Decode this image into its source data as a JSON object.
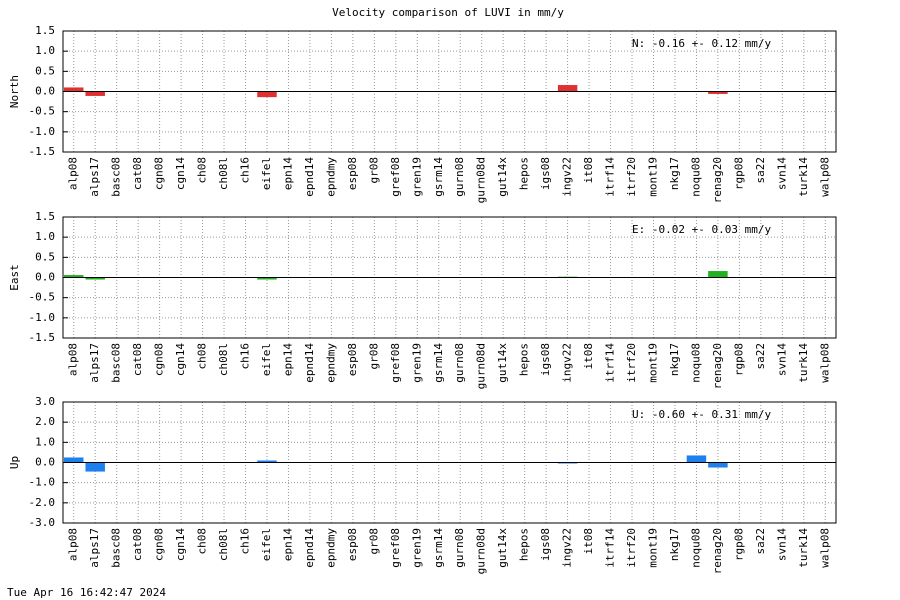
{
  "title": "Velocity comparison of LUVI in mm/y",
  "footer": "Tue Apr 16 16:42:47 2024",
  "chart_data": [
    {
      "type": "bar",
      "ylabel": "North",
      "annotation": "N:  -0.16 +-  0.12 mm/y",
      "color": "#e03030",
      "grid": true,
      "categories": [
        "alp08",
        "alps17",
        "basc08",
        "cat08",
        "cgn08",
        "cgn14",
        "ch08",
        "ch08l",
        "ch16",
        "eifel",
        "epn14",
        "epnd14",
        "epndmy",
        "esp08",
        "gr08",
        "gref08",
        "gren19",
        "gsrm14",
        "gurn08",
        "gurn08d",
        "gut14x",
        "hepos",
        "igs08",
        "ingv22",
        "it08",
        "itrf14",
        "itrf20",
        "mont19",
        "nkg17",
        "noqu08",
        "renag20",
        "rgp08",
        "sa22",
        "svn14",
        "turk14",
        "walp08"
      ],
      "values": [
        0.1,
        -0.11,
        null,
        null,
        null,
        null,
        null,
        null,
        null,
        -0.14,
        null,
        null,
        null,
        null,
        null,
        null,
        null,
        null,
        null,
        null,
        null,
        null,
        null,
        0.16,
        null,
        null,
        null,
        null,
        null,
        null,
        -0.06,
        null,
        null,
        null,
        null,
        null
      ],
      "ylim": [
        -1.5,
        1.5
      ],
      "yticks": [
        {
          "value": -1.5,
          "label": "-1.5"
        },
        {
          "value": -1,
          "label": "-1.0"
        },
        {
          "value": -0.5,
          "label": "-0.5"
        },
        {
          "value": 0,
          "label": "0.0"
        },
        {
          "value": 0.5,
          "label": "0.5"
        },
        {
          "value": 1,
          "label": "1.0"
        },
        {
          "value": 1.5,
          "label": "1.5"
        }
      ]
    },
    {
      "type": "bar",
      "ylabel": "East",
      "annotation": "E:  -0.02 +-  0.03 mm/y",
      "color": "#20b020",
      "grid": true,
      "categories": [
        "alp08",
        "alps17",
        "basc08",
        "cat08",
        "cgn08",
        "cgn14",
        "ch08",
        "ch08l",
        "ch16",
        "eifel",
        "epn14",
        "epnd14",
        "epndmy",
        "esp08",
        "gr08",
        "gref08",
        "gren19",
        "gsrm14",
        "gurn08",
        "gurn08d",
        "gut14x",
        "hepos",
        "igs08",
        "ingv22",
        "it08",
        "itrf14",
        "itrf20",
        "mont19",
        "nkg17",
        "noqu08",
        "renag20",
        "rgp08",
        "sa22",
        "svn14",
        "turk14",
        "walp08"
      ],
      "values": [
        0.06,
        -0.05,
        null,
        null,
        null,
        null,
        null,
        null,
        null,
        -0.05,
        null,
        null,
        null,
        null,
        null,
        null,
        null,
        null,
        null,
        null,
        null,
        null,
        null,
        0.02,
        null,
        null,
        null,
        null,
        null,
        null,
        0.16,
        null,
        null,
        null,
        null,
        null
      ],
      "ylim": [
        -1.5,
        1.5
      ],
      "yticks": [
        {
          "value": -1.5,
          "label": "-1.5"
        },
        {
          "value": -1,
          "label": "-1.0"
        },
        {
          "value": -0.5,
          "label": "-0.5"
        },
        {
          "value": 0,
          "label": "0.0"
        },
        {
          "value": 0.5,
          "label": "0.5"
        },
        {
          "value": 1,
          "label": "1.0"
        },
        {
          "value": 1.5,
          "label": "1.5"
        }
      ]
    },
    {
      "type": "bar",
      "ylabel": "Up",
      "annotation": "U:  -0.60 +-  0.31 mm/y",
      "color": "#1e7fef",
      "grid": true,
      "categories": [
        "alp08",
        "alps17",
        "basc08",
        "cat08",
        "cgn08",
        "cgn14",
        "ch08",
        "ch08l",
        "ch16",
        "eifel",
        "epn14",
        "epnd14",
        "epndmy",
        "esp08",
        "gr08",
        "gref08",
        "gren19",
        "gsrm14",
        "gurn08",
        "gurn08d",
        "gut14x",
        "hepos",
        "igs08",
        "ingv22",
        "it08",
        "itrf14",
        "itrf20",
        "mont19",
        "nkg17",
        "noqu08",
        "renag20",
        "rgp08",
        "sa22",
        "svn14",
        "turk14",
        "walp08"
      ],
      "values": [
        0.25,
        -0.45,
        null,
        null,
        null,
        null,
        null,
        null,
        null,
        0.1,
        null,
        null,
        null,
        null,
        null,
        null,
        null,
        null,
        null,
        null,
        null,
        null,
        null,
        -0.05,
        null,
        null,
        null,
        null,
        null,
        0.35,
        -0.25,
        null,
        null,
        null,
        null,
        null
      ],
      "ylim": [
        -3,
        3
      ],
      "yticks": [
        {
          "value": -3,
          "label": "-3.0"
        },
        {
          "value": -2,
          "label": "-2.0"
        },
        {
          "value": -1,
          "label": "-1.0"
        },
        {
          "value": 0,
          "label": "0.0"
        },
        {
          "value": 1,
          "label": "1.0"
        },
        {
          "value": 2,
          "label": "2.0"
        },
        {
          "value": 3,
          "label": "3.0"
        }
      ]
    }
  ]
}
